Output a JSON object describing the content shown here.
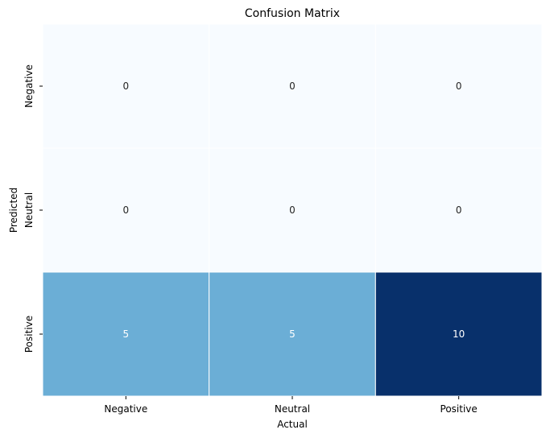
{
  "chart_data": {
    "type": "heatmap",
    "title": "Confusion Matrix",
    "xlabel": "Actual",
    "ylabel": "Predicted",
    "x_categories": [
      "Negative",
      "Neutral",
      "Positive"
    ],
    "y_categories": [
      "Negative",
      "Neutral",
      "Positive"
    ],
    "values": [
      [
        0,
        0,
        0
      ],
      [
        0,
        0,
        0
      ],
      [
        5,
        5,
        10
      ]
    ],
    "value_labels": [
      [
        "0",
        "0",
        "0"
      ],
      [
        "0",
        "0",
        "0"
      ],
      [
        "5",
        "5",
        "10"
      ]
    ],
    "colormap": "Blues",
    "color_range": [
      0,
      10
    ],
    "colorbar": false,
    "grid": false,
    "cell_border_color": "#ffffff",
    "low_color": "#f7fbff",
    "mid_color": "#6baed6",
    "high_color": "#08306b"
  }
}
